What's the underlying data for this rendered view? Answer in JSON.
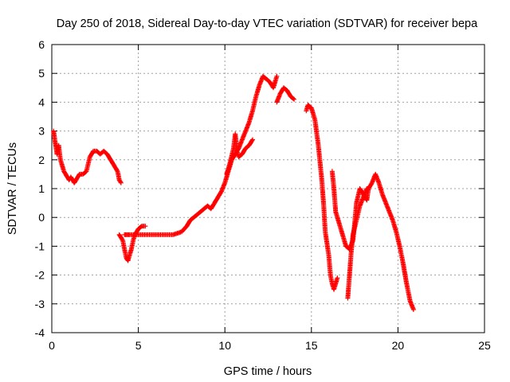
{
  "chart_data": {
    "type": "scatter",
    "title": "Day 250 of 2018, Sidereal Day-to-day VTEC variation (SDTVAR) for receiver bepa",
    "xlabel": "GPS time / hours",
    "ylabel": "SDTVAR / TECUs",
    "xlim": [
      0,
      25
    ],
    "ylim": [
      -4,
      6
    ],
    "xticks": [
      0,
      5,
      10,
      15,
      20,
      25
    ],
    "yticks": [
      -4,
      -3,
      -2,
      -1,
      0,
      1,
      2,
      3,
      4,
      5,
      6
    ],
    "grid": true,
    "marker": "+",
    "color": "#ff0000",
    "segments": [
      {
        "points": [
          [
            0.1,
            3.0
          ],
          [
            0.2,
            2.6
          ],
          [
            0.3,
            2.2
          ],
          [
            0.4,
            2.5
          ],
          [
            0.5,
            2.0
          ],
          [
            0.6,
            1.8
          ],
          [
            0.7,
            1.6
          ],
          [
            0.8,
            1.5
          ],
          [
            0.9,
            1.4
          ],
          [
            1.0,
            1.3
          ],
          [
            1.1,
            1.4
          ],
          [
            1.2,
            1.3
          ],
          [
            1.3,
            1.2
          ],
          [
            1.4,
            1.3
          ],
          [
            1.5,
            1.4
          ],
          [
            1.6,
            1.5
          ],
          [
            1.8,
            1.5
          ],
          [
            2.0,
            1.6
          ],
          [
            2.2,
            2.1
          ],
          [
            2.4,
            2.3
          ],
          [
            2.6,
            2.3
          ],
          [
            2.8,
            2.2
          ],
          [
            3.0,
            2.3
          ],
          [
            3.2,
            2.2
          ],
          [
            3.4,
            2.0
          ],
          [
            3.6,
            1.8
          ],
          [
            3.8,
            1.6
          ],
          [
            3.9,
            1.3
          ],
          [
            4.0,
            1.2
          ]
        ]
      },
      {
        "points": [
          [
            3.9,
            -0.6
          ],
          [
            4.0,
            -0.7
          ],
          [
            4.1,
            -0.8
          ],
          [
            4.2,
            -1.1
          ],
          [
            4.3,
            -1.4
          ],
          [
            4.4,
            -1.5
          ],
          [
            4.5,
            -1.3
          ],
          [
            4.6,
            -1.1
          ],
          [
            4.7,
            -0.8
          ],
          [
            4.8,
            -0.6
          ],
          [
            4.9,
            -0.5
          ],
          [
            5.0,
            -0.4
          ],
          [
            5.2,
            -0.3
          ],
          [
            5.4,
            -0.3
          ]
        ]
      },
      {
        "points": [
          [
            4.2,
            -0.6
          ],
          [
            4.5,
            -0.6
          ],
          [
            5.0,
            -0.6
          ],
          [
            5.5,
            -0.6
          ],
          [
            6.0,
            -0.6
          ],
          [
            6.5,
            -0.6
          ],
          [
            7.0,
            -0.6
          ],
          [
            7.5,
            -0.5
          ],
          [
            7.8,
            -0.3
          ],
          [
            8.0,
            -0.1
          ],
          [
            8.2,
            0.0
          ],
          [
            8.4,
            0.1
          ],
          [
            8.6,
            0.2
          ],
          [
            8.8,
            0.3
          ],
          [
            9.0,
            0.4
          ],
          [
            9.2,
            0.3
          ],
          [
            9.4,
            0.5
          ],
          [
            9.6,
            0.7
          ],
          [
            9.8,
            0.9
          ],
          [
            10.0,
            1.2
          ],
          [
            10.2,
            1.6
          ],
          [
            10.4,
            2.0
          ],
          [
            10.6,
            2.2
          ],
          [
            10.8,
            2.4
          ],
          [
            11.0,
            2.7
          ],
          [
            11.2,
            3.0
          ],
          [
            11.4,
            3.3
          ],
          [
            11.6,
            3.7
          ],
          [
            11.8,
            4.2
          ],
          [
            12.0,
            4.6
          ],
          [
            12.2,
            4.9
          ],
          [
            12.4,
            4.8
          ],
          [
            12.6,
            4.7
          ],
          [
            12.8,
            4.5
          ],
          [
            13.0,
            4.9
          ]
        ]
      },
      {
        "points": [
          [
            10.1,
            1.5
          ],
          [
            10.3,
            1.9
          ],
          [
            10.5,
            2.4
          ],
          [
            10.6,
            2.9
          ],
          [
            10.7,
            2.3
          ],
          [
            10.8,
            2.1
          ],
          [
            11.0,
            2.2
          ],
          [
            11.2,
            2.4
          ],
          [
            11.4,
            2.5
          ],
          [
            11.6,
            2.7
          ]
        ]
      },
      {
        "points": [
          [
            13.0,
            4.0
          ],
          [
            13.2,
            4.3
          ],
          [
            13.4,
            4.5
          ],
          [
            13.6,
            4.4
          ],
          [
            13.8,
            4.2
          ],
          [
            14.0,
            4.1
          ]
        ]
      },
      {
        "points": [
          [
            14.7,
            3.7
          ],
          [
            14.8,
            3.9
          ],
          [
            15.0,
            3.8
          ],
          [
            15.2,
            3.4
          ],
          [
            15.4,
            2.5
          ],
          [
            15.6,
            1.3
          ],
          [
            15.7,
            0.5
          ],
          [
            15.8,
            -0.5
          ],
          [
            16.0,
            -1.3
          ],
          [
            16.1,
            -2.0
          ],
          [
            16.2,
            -2.3
          ],
          [
            16.3,
            -2.5
          ],
          [
            16.4,
            -2.3
          ],
          [
            16.5,
            -2.1
          ]
        ]
      },
      {
        "points": [
          [
            16.2,
            1.6
          ],
          [
            16.3,
            1.0
          ],
          [
            16.4,
            0.2
          ],
          [
            16.6,
            -0.2
          ],
          [
            16.8,
            -0.6
          ],
          [
            17.0,
            -1.0
          ],
          [
            17.2,
            -1.1
          ],
          [
            17.4,
            -0.8
          ],
          [
            17.5,
            -0.2
          ],
          [
            17.6,
            0.5
          ],
          [
            17.8,
            1.0
          ],
          [
            18.0,
            0.8
          ],
          [
            18.2,
            0.6
          ],
          [
            18.3,
            1.0
          ],
          [
            18.5,
            1.2
          ],
          [
            18.7,
            1.5
          ],
          [
            18.9,
            1.2
          ],
          [
            19.1,
            0.8
          ],
          [
            19.3,
            0.5
          ],
          [
            19.5,
            0.2
          ],
          [
            19.7,
            -0.1
          ],
          [
            19.9,
            -0.5
          ],
          [
            20.1,
            -1.0
          ],
          [
            20.3,
            -1.6
          ],
          [
            20.5,
            -2.3
          ],
          [
            20.7,
            -2.9
          ],
          [
            20.9,
            -3.2
          ]
        ]
      },
      {
        "points": [
          [
            17.1,
            -2.8
          ],
          [
            17.2,
            -2.0
          ],
          [
            17.3,
            -1.2
          ],
          [
            17.4,
            -0.6
          ],
          [
            17.6,
            -0.1
          ],
          [
            17.8,
            0.4
          ],
          [
            18.0,
            0.7
          ],
          [
            18.2,
            1.0
          ]
        ]
      }
    ]
  }
}
